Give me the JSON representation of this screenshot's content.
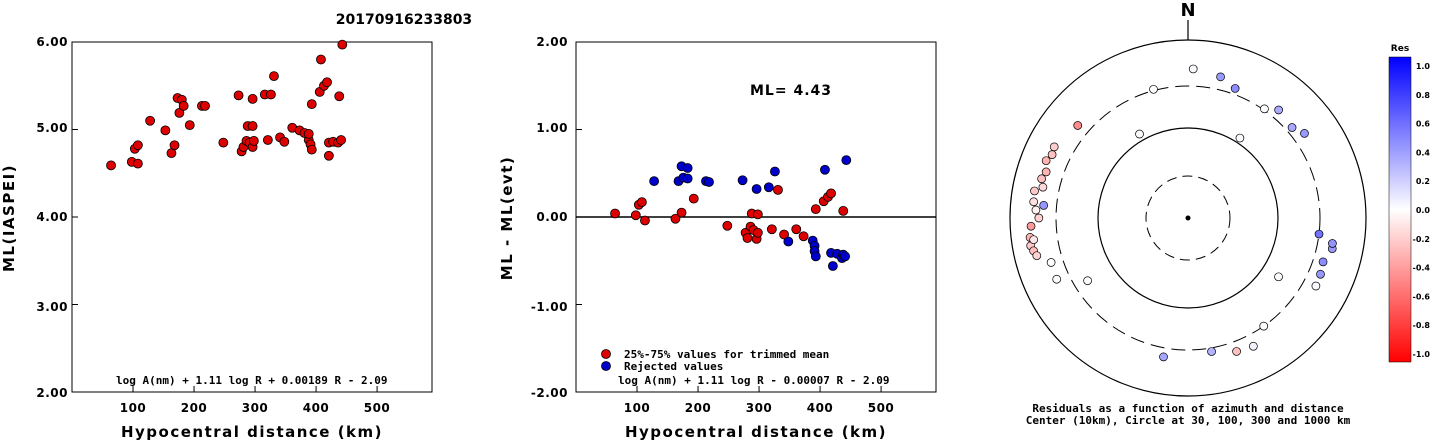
{
  "figure": {
    "title": "20170916233803"
  },
  "colors": {
    "accepted": "#dd0000",
    "rejected": "#0000cc",
    "axis": "#000000"
  },
  "chart_data": [
    {
      "type": "scatter",
      "panel": "left",
      "xlabel": "Hypocentral distance (km)",
      "ylabel": "ML(IASPEI)",
      "xlim": [
        0,
        590
      ],
      "ylim": [
        2.0,
        6.0
      ],
      "xticks": [
        "100",
        "200",
        "300",
        "400",
        "500"
      ],
      "yticks": [
        "2.00",
        "3.00",
        "4.00",
        "5.00",
        "6.00"
      ],
      "formula": "log A(nm) + 1.11 log R + 0.00189 R - 2.09",
      "series": [
        {
          "color": "red",
          "points": [
            [
              64,
              4.59
            ],
            [
              98,
              4.63
            ],
            [
              103,
              4.78
            ],
            [
              108,
              4.82
            ],
            [
              108,
              4.61
            ],
            [
              128,
              5.1
            ],
            [
              153,
              4.99
            ],
            [
              163,
              4.73
            ],
            [
              168,
              4.82
            ],
            [
              173,
              5.36
            ],
            [
              176,
              5.19
            ],
            [
              180,
              5.34
            ],
            [
              183,
              5.27
            ],
            [
              193,
              5.05
            ],
            [
              213,
              5.27
            ],
            [
              218,
              5.27
            ],
            [
              248,
              4.85
            ],
            [
              273,
              5.39
            ],
            [
              278,
              4.75
            ],
            [
              281,
              4.8
            ],
            [
              286,
              4.87
            ],
            [
              288,
              5.04
            ],
            [
              291,
              4.85
            ],
            [
              296,
              5.04
            ],
            [
              296,
              4.8
            ],
            [
              298,
              4.87
            ],
            [
              296,
              5.35
            ],
            [
              316,
              5.4
            ],
            [
              321,
              4.88
            ],
            [
              326,
              5.4
            ],
            [
              331,
              5.61
            ],
            [
              341,
              4.91
            ],
            [
              348,
              4.86
            ],
            [
              361,
              5.02
            ],
            [
              373,
              4.99
            ],
            [
              381,
              4.96
            ],
            [
              388,
              4.88
            ],
            [
              391,
              4.83
            ],
            [
              393,
              4.77
            ],
            [
              388,
              4.95
            ],
            [
              393,
              5.29
            ],
            [
              406,
              5.43
            ],
            [
              408,
              5.8
            ],
            [
              413,
              5.5
            ],
            [
              418,
              5.54
            ],
            [
              421,
              4.85
            ],
            [
              421,
              4.7
            ],
            [
              428,
              4.86
            ],
            [
              436,
              4.85
            ],
            [
              438,
              5.38
            ],
            [
              441,
              4.88
            ],
            [
              443,
              5.97
            ]
          ]
        }
      ]
    },
    {
      "type": "scatter",
      "panel": "middle",
      "xlabel": "Hypocentral distance (km)",
      "ylabel": "ML - ML(evt)",
      "xlim": [
        0,
        590
      ],
      "ylim": [
        -2.0,
        2.0
      ],
      "xticks": [
        "100",
        "200",
        "300",
        "400",
        "500"
      ],
      "yticks": [
        "-2.00",
        "-1.00",
        "0.00",
        "1.00",
        "2.00"
      ],
      "annotation": "ML= 4.43",
      "formula": "log A(nm) + 1.11 log R - 0.00007 R - 2.09",
      "legend": [
        "25%-75% values for trimmed mean",
        "Rejected values"
      ],
      "legend_position": "bottom-left",
      "series": [
        {
          "name": "25%-75% values for trimmed mean",
          "color": "red",
          "points": [
            [
              64,
              0.04
            ],
            [
              98,
              0.02
            ],
            [
              103,
              0.14
            ],
            [
              108,
              0.17
            ],
            [
              113,
              -0.04
            ],
            [
              163,
              -0.02
            ],
            [
              173,
              0.05
            ],
            [
              193,
              0.21
            ],
            [
              248,
              -0.1
            ],
            [
              278,
              -0.18
            ],
            [
              281,
              -0.24
            ],
            [
              286,
              -0.11
            ],
            [
              288,
              0.04
            ],
            [
              291,
              -0.15
            ],
            [
              296,
              -0.25
            ],
            [
              298,
              0.03
            ],
            [
              298,
              -0.18
            ],
            [
              321,
              -0.14
            ],
            [
              331,
              0.31
            ],
            [
              341,
              -0.2
            ],
            [
              361,
              -0.14
            ],
            [
              373,
              -0.22
            ],
            [
              393,
              0.09
            ],
            [
              406,
              0.18
            ],
            [
              413,
              0.23
            ],
            [
              418,
              0.27
            ],
            [
              438,
              0.07
            ]
          ]
        },
        {
          "name": "Rejected values",
          "color": "blue",
          "points": [
            [
              128,
              0.41
            ],
            [
              168,
              0.41
            ],
            [
              173,
              0.58
            ],
            [
              176,
              0.45
            ],
            [
              183,
              0.56
            ],
            [
              183,
              0.44
            ],
            [
              213,
              0.41
            ],
            [
              218,
              0.4
            ],
            [
              273,
              0.42
            ],
            [
              296,
              0.32
            ],
            [
              316,
              0.34
            ],
            [
              326,
              0.52
            ],
            [
              348,
              -0.28
            ],
            [
              388,
              -0.27
            ],
            [
              391,
              -0.33
            ],
            [
              391,
              -0.39
            ],
            [
              393,
              -0.45
            ],
            [
              408,
              0.54
            ],
            [
              418,
              -0.41
            ],
            [
              421,
              -0.56
            ],
            [
              428,
              -0.42
            ],
            [
              436,
              -0.47
            ],
            [
              438,
              -0.43
            ],
            [
              441,
              -0.45
            ],
            [
              443,
              0.65
            ]
          ]
        }
      ]
    },
    {
      "type": "scatter",
      "panel": "polar",
      "north_label": "N",
      "caption_line1": "Residuals as a function of azimuth and distance",
      "caption_line2": "Center (10km), Circle at 30, 100, 300 and 1000 km",
      "rings_km": [
        30,
        100,
        300,
        1000
      ],
      "colorbar": {
        "title": "Res",
        "ticks": [
          "1.0",
          "0.8",
          "0.6",
          "0.4",
          "0.2",
          "0.0",
          "-0.2",
          "-0.4",
          "-0.6",
          "-0.8",
          "-1.0"
        ]
      },
      "points": [
        {
          "az": 20,
          "dist_km": 350,
          "res": 0.45
        },
        {
          "az": 2,
          "dist_km": 470,
          "res": 0.02
        },
        {
          "az": 13,
          "dist_km": 420,
          "res": 0.4
        },
        {
          "az": 345,
          "dist_km": 310,
          "res": 0.01
        },
        {
          "az": 40,
          "dist_km": 380,
          "res": 0.33
        },
        {
          "az": 35,
          "dist_km": 310,
          "res": 0.01
        },
        {
          "az": 54,
          "dist_km": 410,
          "res": 0.4
        },
        {
          "az": 49,
          "dist_km": 350,
          "res": 0.34
        },
        {
          "az": 330,
          "dist_km": 120,
          "res": 0.01
        },
        {
          "az": 33,
          "dist_km": 115,
          "res": 0.02
        },
        {
          "az": 310,
          "dist_km": 410,
          "res": -0.45
        },
        {
          "az": 298,
          "dist_km": 500,
          "res": -0.2
        },
        {
          "az": 292,
          "dist_km": 520,
          "res": -0.3
        },
        {
          "az": 295,
          "dist_km": 480,
          "res": -0.24
        },
        {
          "az": 288,
          "dist_km": 470,
          "res": -0.3
        },
        {
          "az": 285,
          "dist_km": 500,
          "res": -0.25
        },
        {
          "az": 282,
          "dist_km": 460,
          "res": -0.15
        },
        {
          "az": 280,
          "dist_km": 560,
          "res": -0.22
        },
        {
          "az": 276,
          "dist_km": 550,
          "res": -0.12
        },
        {
          "az": 273,
          "dist_km": 510,
          "res": -0.05
        },
        {
          "az": 270,
          "dist_km": 470,
          "res": -0.18
        },
        {
          "az": 267,
          "dist_km": 580,
          "res": -0.4
        },
        {
          "az": 263,
          "dist_km": 610,
          "res": -0.3
        },
        {
          "az": 260,
          "dist_km": 620,
          "res": -0.22
        },
        {
          "az": 258,
          "dist_km": 590,
          "res": -0.25
        },
        {
          "az": 256,
          "dist_km": 560,
          "res": -0.18
        },
        {
          "az": 262,
          "dist_km": 560,
          "res": -0.1
        },
        {
          "az": 275,
          "dist_km": 420,
          "res": 0.41
        },
        {
          "az": 252,
          "dist_km": 410,
          "res": 0.0
        },
        {
          "az": 245,
          "dist_km": 420,
          "res": 0.02
        },
        {
          "az": 238,
          "dist_km": 210,
          "res": 0.01
        },
        {
          "az": 123,
          "dist_km": 160,
          "res": 0.01
        },
        {
          "az": 97,
          "dist_km": 300,
          "res": 0.55
        },
        {
          "az": 102,
          "dist_km": 450,
          "res": 0.4
        },
        {
          "az": 108,
          "dist_km": 390,
          "res": 0.45
        },
        {
          "az": 100,
          "dist_km": 440,
          "res": 0.42
        },
        {
          "az": 113,
          "dist_km": 410,
          "res": 0.41
        },
        {
          "az": 118,
          "dist_km": 420,
          "res": 0.02
        },
        {
          "az": 145,
          "dist_km": 300,
          "res": 0.01
        },
        {
          "az": 170,
          "dist_km": 330,
          "res": 0.3
        },
        {
          "az": 190,
          "dist_km": 380,
          "res": 0.35
        },
        {
          "az": 160,
          "dist_km": 390,
          "res": -0.25
        },
        {
          "az": 153,
          "dist_km": 410,
          "res": 0.05
        }
      ]
    }
  ]
}
